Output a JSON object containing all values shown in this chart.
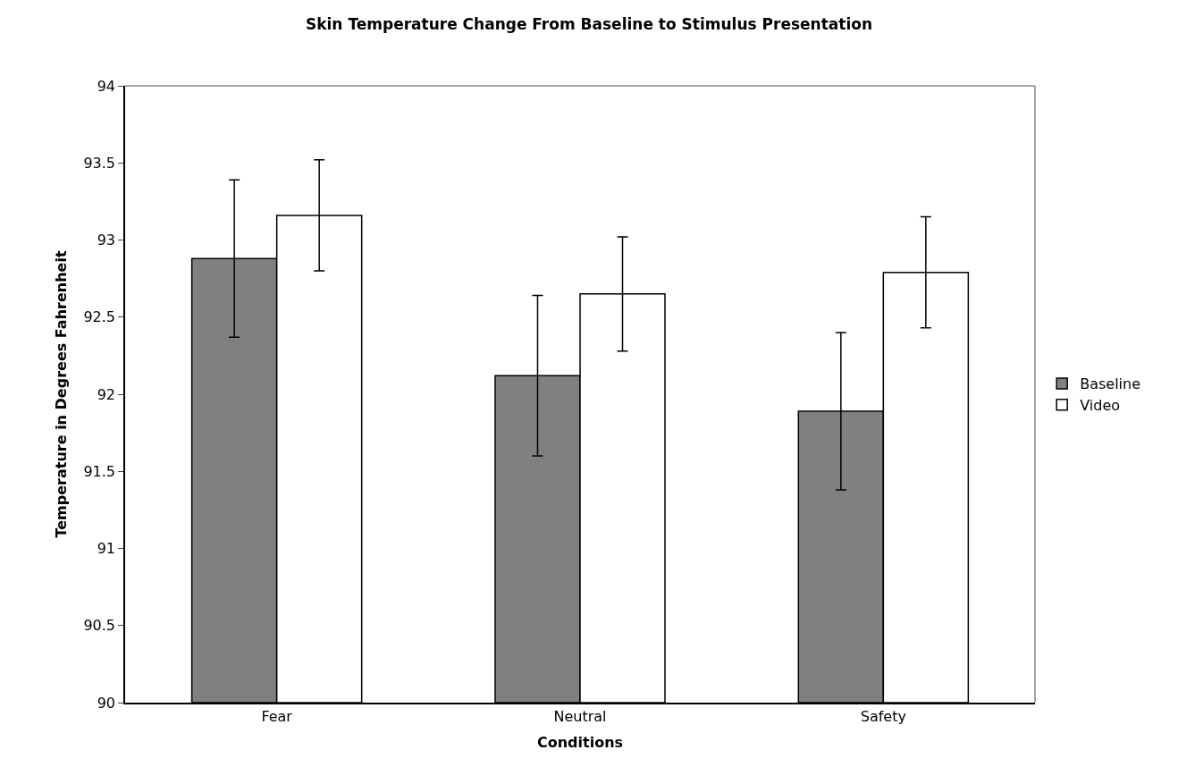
{
  "chart_data": {
    "type": "bar",
    "title": "Skin Temperature Change From Baseline to Stimulus Presentation",
    "xlabel": "Conditions",
    "ylabel": "Temperature in Degrees Fahrenheit",
    "categories": [
      "Fear",
      "Neutral",
      "Safety"
    ],
    "series": [
      {
        "name": "Baseline",
        "color": "#808080",
        "values": [
          92.88,
          92.12,
          91.89
        ],
        "errors": [
          0.51,
          0.52,
          0.51
        ]
      },
      {
        "name": "Video",
        "color": "#ffffff",
        "values": [
          93.16,
          92.65,
          92.79
        ],
        "errors": [
          0.36,
          0.37,
          0.36
        ]
      }
    ],
    "ylim": [
      90,
      94
    ],
    "yticks": [
      90,
      90.5,
      91,
      91.5,
      92,
      92.5,
      93,
      93.5,
      94
    ],
    "grid": false,
    "legend": "right"
  }
}
